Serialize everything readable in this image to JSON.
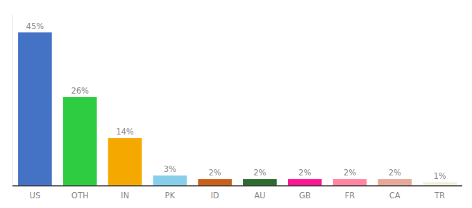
{
  "chart_data": {
    "type": "bar",
    "categories": [
      "US",
      "OTH",
      "IN",
      "PK",
      "ID",
      "AU",
      "GB",
      "FR",
      "CA",
      "TR"
    ],
    "values": [
      45,
      26,
      14,
      3,
      2,
      2,
      2,
      2,
      2,
      1
    ],
    "value_labels": [
      "45%",
      "26%",
      "14%",
      "3%",
      "2%",
      "2%",
      "2%",
      "2%",
      "2%",
      "1%"
    ],
    "colors": [
      "#4472c4",
      "#2ecc40",
      "#f5a800",
      "#87ceeb",
      "#c8601a",
      "#2d6a2d",
      "#ff1493",
      "#ff85a1",
      "#e8a898",
      "#f0eeda"
    ],
    "ylim": [
      0,
      50
    ],
    "data_labels": true,
    "tick_labels": "x",
    "grid": false
  }
}
